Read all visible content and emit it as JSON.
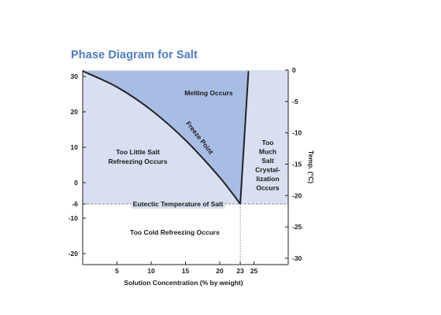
{
  "chart_data": {
    "type": "area",
    "title": "Phase Diagram for Salt",
    "xlabel": "Solution Concentration (% by weight)",
    "ylabel_right": "Temp. (°C)",
    "x_ticks": [
      "5",
      "10",
      "15",
      "20",
      "23",
      "25"
    ],
    "x_tick_values": [
      5,
      10,
      15,
      20,
      23,
      25
    ],
    "xlim": [
      0,
      30
    ],
    "y_left_ticks": [
      "30",
      "20",
      "10",
      "0",
      "-6",
      "-10",
      "-20"
    ],
    "y_left_tick_values": [
      30,
      20,
      10,
      0,
      -6,
      -10,
      -20
    ],
    "ylim_left": [
      -22,
      31
    ],
    "y_right_ticks": [
      "0",
      "-5",
      "-10",
      "-15",
      "-20",
      "-25",
      "-30"
    ],
    "y_right_tick_values": [
      0,
      -5,
      -10,
      -15,
      -20,
      -25,
      -30
    ],
    "ylim_right": [
      -31,
      0
    ],
    "freeze_point_curve": {
      "name": "Freeze Point",
      "x": [
        0,
        5,
        10,
        15,
        20,
        23
      ],
      "y": [
        31.5,
        27,
        20.5,
        12,
        1.5,
        -6
      ]
    },
    "solubility_line": {
      "x": [
        23,
        24.2
      ],
      "y": [
        -6,
        31.5
      ]
    },
    "eutectic": {
      "label": "Eutectic Temperature of Salt",
      "x": 23,
      "y": -6
    },
    "regions": {
      "melting": "Melting Occurs",
      "too_little_salt": [
        "Too Little Salt",
        "Refreezing Occurs"
      ],
      "too_much_salt": [
        "Too",
        "Much",
        "Salt",
        "Crystal-",
        "lization",
        "Occurs"
      ],
      "too_cold": "Too Cold Refreezing Occurs"
    },
    "grid": false,
    "colors": {
      "light_region": "#d7dff0",
      "melting_region": "#a8bde4",
      "curve": "#222222",
      "title": "#4d7cc2"
    }
  }
}
